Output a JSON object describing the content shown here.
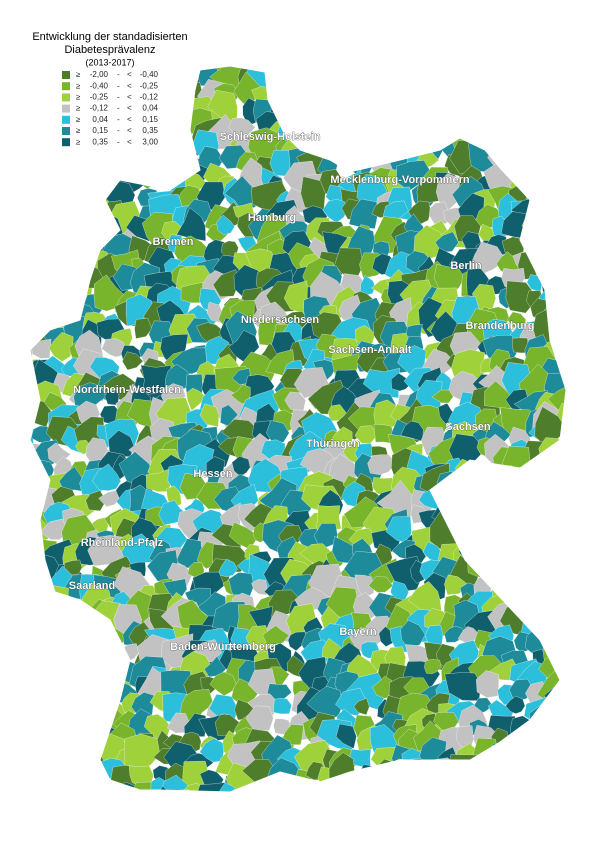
{
  "header": {
    "title": [
      "Entwicklung der standadisierten",
      "Diabetesprävalenz"
    ],
    "period": "(2013-2017)"
  },
  "legend": [
    {
      "symbol": "≥",
      "from": "-2,00",
      "dash": "-",
      "lt": "<",
      "to": "-0,40",
      "color": "#4e7d2b"
    },
    {
      "symbol": "≥",
      "from": "-0,40",
      "dash": "-",
      "lt": "<",
      "to": "-0,25",
      "color": "#78b42c"
    },
    {
      "symbol": "≥",
      "from": "-0,25",
      "dash": "-",
      "lt": "<",
      "to": "-0,12",
      "color": "#9fd13a"
    },
    {
      "symbol": "≥",
      "from": "-0,12",
      "dash": "-",
      "lt": "<",
      "to": "0,04",
      "color": "#c2c2c2"
    },
    {
      "symbol": "≥",
      "from": "0,04",
      "dash": "-",
      "lt": "<",
      "to": "0,15",
      "color": "#2cbfdc"
    },
    {
      "symbol": "≥",
      "from": "0,15",
      "dash": "-",
      "lt": "<",
      "to": "0,35",
      "color": "#1e8b9b"
    },
    {
      "symbol": "≥",
      "from": "0,35",
      "dash": "-",
      "lt": "<",
      "to": "3,00",
      "color": "#0f5f6c"
    }
  ],
  "labels": [
    "Schleswig-Holstein",
    "Mecklenburg-Vorpommern",
    "Hamburg",
    "Bremen",
    "Berlin",
    "Niedersachsen",
    "Brandenburg",
    "Sachsen-Anhalt",
    "Nordrhein-Westfalen",
    "Sachsen",
    "Thüringen",
    "Hessen",
    "Rheinland-Pfalz",
    "Saarland",
    "Bayern",
    "Baden-Württemberg"
  ]
}
